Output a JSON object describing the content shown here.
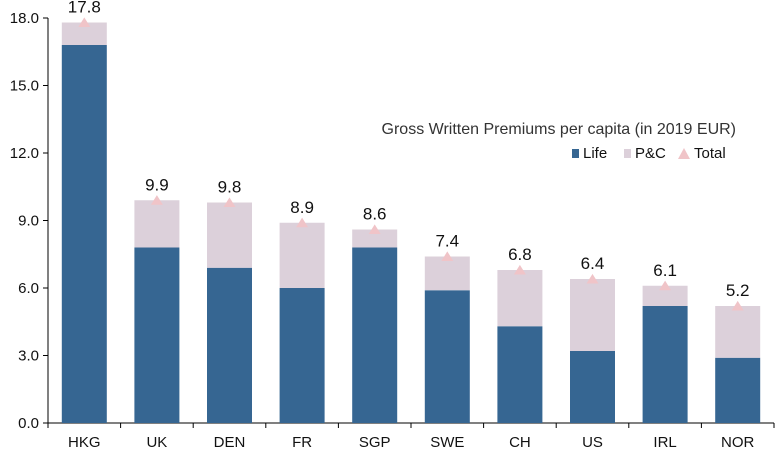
{
  "chart_data": {
    "type": "bar",
    "stacked": true,
    "title": "Gross Written Premiums per capita (in 2019 EUR)",
    "xlabel": "",
    "ylabel": "",
    "ylim": [
      0,
      18
    ],
    "yticks": [
      "0.0",
      "3.0",
      "6.0",
      "9.0",
      "12.0",
      "15.0",
      "18.0"
    ],
    "categories": [
      "HKG",
      "UK",
      "DEN",
      "FR",
      "SGP",
      "SWE",
      "CH",
      "US",
      "IRL",
      "NOR"
    ],
    "series": [
      {
        "name": "Life",
        "values": [
          16.8,
          7.8,
          6.9,
          6.0,
          7.8,
          5.9,
          4.3,
          3.2,
          5.2,
          2.9
        ],
        "color": "#366692"
      },
      {
        "name": "P&C",
        "values": [
          1.0,
          2.1,
          2.9,
          2.9,
          0.8,
          1.5,
          2.5,
          3.2,
          0.9,
          2.3
        ],
        "color": "#dcd0da"
      },
      {
        "name": "Total",
        "values": [
          17.8,
          9.9,
          9.8,
          8.9,
          8.6,
          7.4,
          6.8,
          6.4,
          6.1,
          5.2
        ],
        "color": "#f0c4c8",
        "marker": "triangle"
      }
    ],
    "data_labels": [
      "17.8",
      "9.9",
      "9.8",
      "8.9",
      "8.6",
      "7.4",
      "6.8",
      "6.4",
      "6.1",
      "5.2"
    ],
    "legend_placement": "right, below title",
    "grid": false
  }
}
